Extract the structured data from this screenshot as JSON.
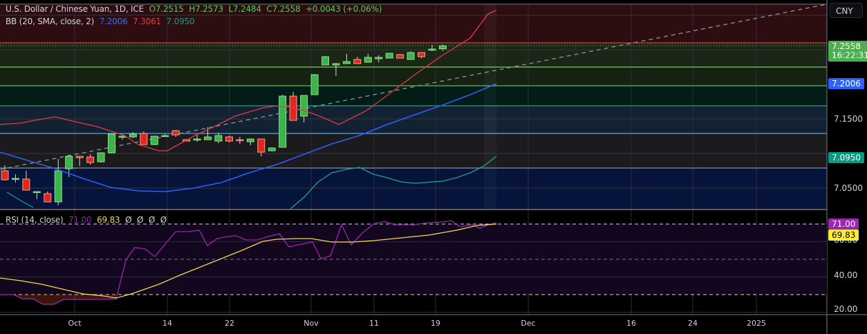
{
  "header": {
    "symbol_title": "U.S. Dollar / Chinese Yuan, 1D, ICE",
    "open": "O7.2515",
    "high": "H7.2573",
    "low": "L7.2484",
    "close": "C7.2558",
    "change": "+0.0043 (+0.06%)"
  },
  "bb_legend": {
    "label": "BB (20, SMA, close, 2)",
    "basis": "7.2006",
    "upper": "7.3061",
    "lower": "7.0950"
  },
  "rsi_legend": {
    "label": "RSI (14, close)",
    "rsi": "71.00",
    "ma": "69.83",
    "extra": [
      "Ø",
      "Ø",
      "Ø",
      "Ø"
    ]
  },
  "price_axis": {
    "currency_button": "CNY",
    "last_price": "7.2558",
    "countdown": "16:22:31",
    "bb_basis_tag": "7.2006",
    "bb_lower_tag": "7.0950",
    "ticks": [
      "7.1500",
      "7.0500"
    ]
  },
  "rsi_axis": {
    "rsi_tag": "71.00",
    "ma_tag": "69.83",
    "ticks": [
      "60.00",
      "40.00",
      "20.00"
    ]
  },
  "time_axis": {
    "ticks": [
      "Oct",
      "14",
      "22",
      "Nov",
      "11",
      "19",
      "Dec",
      "16",
      "24",
      "2025"
    ]
  },
  "colors": {
    "up": "#3cb44b",
    "down": "#e0271f",
    "bb_basis": "#2962ff",
    "bb_upper": "#e63946",
    "bb_lower": "#20a38a",
    "rsi_line": "#9c27b0",
    "rsi_ma": "#f5d94a",
    "last_price_tag": "#4caf50",
    "basis_tag": "#2962ff",
    "lower_tag": "#089981",
    "rsi_tag": "#9c27b0",
    "ma_tag": "#ffeb3b"
  },
  "chart_data": [
    {
      "type": "candlestick",
      "title": "U.S. Dollar / Chinese Yuan, 1D, ICE",
      "ylabel": "CNY",
      "ylim": [
        7.01,
        7.33
      ],
      "x_ticks": [
        "Oct",
        "14",
        "22",
        "Nov",
        "11",
        "19",
        "Dec",
        "16",
        "24",
        "2025"
      ],
      "candles": [
        {
          "o": 7.075,
          "h": 7.083,
          "l": 7.061,
          "c": 7.062
        },
        {
          "o": 7.064,
          "h": 7.07,
          "l": 7.058,
          "c": 7.064
        },
        {
          "o": 7.063,
          "h": 7.075,
          "l": 7.05,
          "c": 7.047
        },
        {
          "o": 7.045,
          "h": 7.045,
          "l": 7.034,
          "c": 7.045
        },
        {
          "o": 7.042,
          "h": 7.045,
          "l": 7.03,
          "c": 7.03
        },
        {
          "o": 7.03,
          "h": 7.092,
          "l": 7.025,
          "c": 7.075
        },
        {
          "o": 7.078,
          "h": 7.098,
          "l": 7.066,
          "c": 7.096
        },
        {
          "o": 7.096,
          "h": 7.096,
          "l": 7.082,
          "c": 7.094
        },
        {
          "o": 7.095,
          "h": 7.099,
          "l": 7.084,
          "c": 7.087
        },
        {
          "o": 7.088,
          "h": 7.102,
          "l": 7.087,
          "c": 7.101
        },
        {
          "o": 7.101,
          "h": 7.128,
          "l": 7.1,
          "c": 7.128
        },
        {
          "o": 7.125,
          "h": 7.128,
          "l": 7.12,
          "c": 7.125
        },
        {
          "o": 7.124,
          "h": 7.131,
          "l": 7.122,
          "c": 7.128
        },
        {
          "o": 7.129,
          "h": 7.132,
          "l": 7.117,
          "c": 7.113
        },
        {
          "o": 7.113,
          "h": 7.126,
          "l": 7.112,
          "c": 7.125
        },
        {
          "o": 7.126,
          "h": 7.128,
          "l": 7.125,
          "c": 7.126
        },
        {
          "o": 7.133,
          "h": 7.134,
          "l": 7.124,
          "c": 7.127
        },
        {
          "o": 7.12,
          "h": 7.121,
          "l": 7.118,
          "c": 7.118
        },
        {
          "o": 7.121,
          "h": 7.127,
          "l": 7.117,
          "c": 7.121
        },
        {
          "o": 7.12,
          "h": 7.138,
          "l": 7.12,
          "c": 7.124
        },
        {
          "o": 7.118,
          "h": 7.13,
          "l": 7.115,
          "c": 7.126
        },
        {
          "o": 7.124,
          "h": 7.126,
          "l": 7.116,
          "c": 7.118
        },
        {
          "o": 7.12,
          "h": 7.124,
          "l": 7.114,
          "c": 7.119
        },
        {
          "o": 7.117,
          "h": 7.122,
          "l": 7.112,
          "c": 7.121
        },
        {
          "o": 7.121,
          "h": 7.121,
          "l": 7.096,
          "c": 7.102
        },
        {
          "o": 7.104,
          "h": 7.109,
          "l": 7.103,
          "c": 7.108
        },
        {
          "o": 7.109,
          "h": 7.185,
          "l": 7.109,
          "c": 7.183
        },
        {
          "o": 7.183,
          "h": 7.189,
          "l": 7.148,
          "c": 7.148
        },
        {
          "o": 7.154,
          "h": 7.184,
          "l": 7.145,
          "c": 7.184
        },
        {
          "o": 7.185,
          "h": 7.215,
          "l": 7.185,
          "c": 7.214
        },
        {
          "o": 7.228,
          "h": 7.241,
          "l": 7.228,
          "c": 7.24
        },
        {
          "o": 7.228,
          "h": 7.231,
          "l": 7.212,
          "c": 7.23
        },
        {
          "o": 7.23,
          "h": 7.244,
          "l": 7.23,
          "c": 7.233
        },
        {
          "o": 7.236,
          "h": 7.24,
          "l": 7.23,
          "c": 7.23
        },
        {
          "o": 7.232,
          "h": 7.244,
          "l": 7.232,
          "c": 7.239
        },
        {
          "o": 7.237,
          "h": 7.242,
          "l": 7.232,
          "c": 7.239
        },
        {
          "o": 7.238,
          "h": 7.245,
          "l": 7.238,
          "c": 7.245
        },
        {
          "o": 7.243,
          "h": 7.244,
          "l": 7.238,
          "c": 7.238
        },
        {
          "o": 7.236,
          "h": 7.248,
          "l": 7.236,
          "c": 7.246
        },
        {
          "o": 7.246,
          "h": 7.246,
          "l": 7.238,
          "c": 7.24
        },
        {
          "o": 7.251,
          "h": 7.257,
          "l": 7.248,
          "c": 7.251
        },
        {
          "o": 7.2515,
          "h": 7.2573,
          "l": 7.2484,
          "c": 7.2558
        }
      ],
      "overlays": {
        "bb_basis_last": 7.2006,
        "bb_upper_last": 7.3061,
        "bb_lower_last": 7.095
      },
      "horizontal_levels": [
        7.2558,
        7.248,
        7.228,
        7.205,
        7.177,
        7.139,
        7.092
      ]
    },
    {
      "type": "line",
      "title": "RSI (14, close)",
      "ylim": [
        15,
        80
      ],
      "y_ticks": [
        "20.00",
        "40.00",
        "60.00"
      ],
      "bands": [
        30,
        50,
        70
      ],
      "series": [
        {
          "name": "RSI",
          "last": 71.0
        },
        {
          "name": "RSI-based MA",
          "last": 69.83
        }
      ]
    }
  ]
}
